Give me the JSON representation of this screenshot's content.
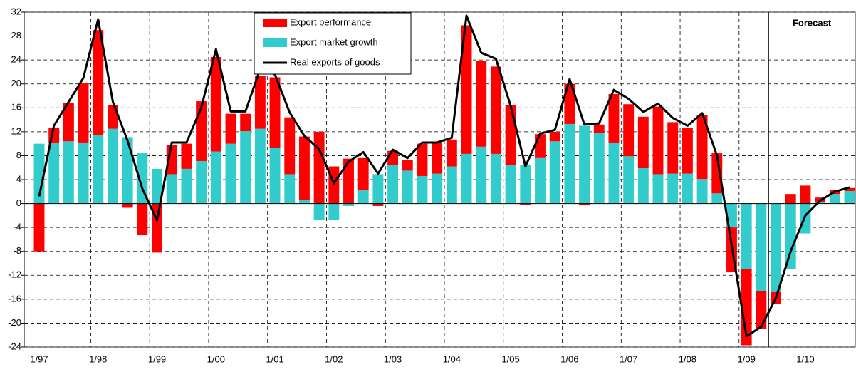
{
  "chart_data": {
    "type": "bar",
    "stacked": true,
    "categories": [
      "1/97",
      null,
      null,
      null,
      "1/98",
      null,
      null,
      null,
      "1/99",
      null,
      null,
      null,
      "1/00",
      null,
      null,
      null,
      "1/01",
      null,
      null,
      null,
      "1/02",
      null,
      null,
      null,
      "1/03",
      null,
      null,
      null,
      "1/04",
      null,
      null,
      null,
      "1/05",
      null,
      null,
      null,
      "1/06",
      null,
      null,
      null,
      "1/07",
      null,
      null,
      null,
      "1/08",
      null,
      null,
      null,
      "1/09",
      null,
      null,
      null,
      "1/10",
      null,
      null,
      null
    ],
    "series": [
      {
        "name": "Export performance",
        "type": "bar",
        "color": "#ff0000",
        "values": [
          -8,
          2.5,
          6.4,
          9.9,
          17.5,
          4,
          -0.7,
          -5.3,
          -8.2,
          4.9,
          4.2,
          10,
          15.8,
          5,
          2.9,
          8.8,
          11.8,
          9.5,
          10.6,
          12,
          6.2,
          7.5,
          5.4,
          -0.4,
          2.3,
          1.8,
          5.4,
          5.1,
          4.5,
          21.5,
          14.3,
          14.6,
          9.9,
          -0.2,
          4,
          1.6,
          6.7,
          -0.3,
          1.4,
          8.1,
          8.7,
          8.6,
          11.3,
          8.6,
          7.7,
          10.7,
          6.7,
          -7.5,
          -12.7,
          -6.4,
          -2,
          1.6,
          3,
          0.8,
          0.7,
          0.5
        ]
      },
      {
        "name": "Export market growth",
        "type": "bar",
        "color": "#33cccc",
        "values": [
          10,
          10.2,
          10.4,
          10.2,
          11.5,
          12.5,
          11.1,
          8.4,
          5.8,
          4.9,
          5.8,
          7.1,
          8.7,
          10,
          12.1,
          12.5,
          9.3,
          4.9,
          0.6,
          -2.8,
          -2.8,
          -0.4,
          2.2,
          4.9,
          6.5,
          5.5,
          4.6,
          5,
          6.2,
          8.3,
          9.5,
          8.3,
          6.5,
          6.4,
          7.6,
          10.4,
          13.3,
          13,
          11.8,
          10.2,
          7.9,
          5.9,
          4.9,
          5,
          5,
          4.1,
          1.7,
          -4,
          -11,
          -14.6,
          -14.8,
          -11,
          -5,
          0.2,
          1.6,
          2.1
        ]
      },
      {
        "name": "Real exports of goods",
        "type": "line",
        "color": "#000000",
        "values": [
          1.2,
          13,
          17,
          21,
          30.8,
          17,
          10.5,
          2.5,
          -2.8,
          10.2,
          10.2,
          16,
          25.8,
          15.4,
          15.4,
          22.5,
          21.6,
          15.2,
          11.3,
          9.1,
          3.4,
          7,
          8.6,
          5,
          9,
          7.6,
          10.2,
          10.2,
          11,
          31.4,
          25.2,
          24.2,
          16.3,
          6.2,
          11.7,
          12.3,
          20.8,
          13.2,
          13.4,
          19,
          17.5,
          15.3,
          16.7,
          14.3,
          13,
          15.1,
          8,
          -7,
          -22.2,
          -20.6,
          -15.8,
          -8,
          -2,
          0.5,
          2,
          2.7
        ]
      }
    ],
    "ylim": [
      -24,
      32
    ],
    "yticks": [
      -24,
      -20,
      -16,
      -12,
      -8,
      -4,
      0,
      4,
      8,
      12,
      16,
      20,
      24,
      28,
      32
    ],
    "grid": true,
    "legend": "top",
    "annotations": [
      {
        "text": "Forecast",
        "x_index": 50
      }
    ]
  }
}
